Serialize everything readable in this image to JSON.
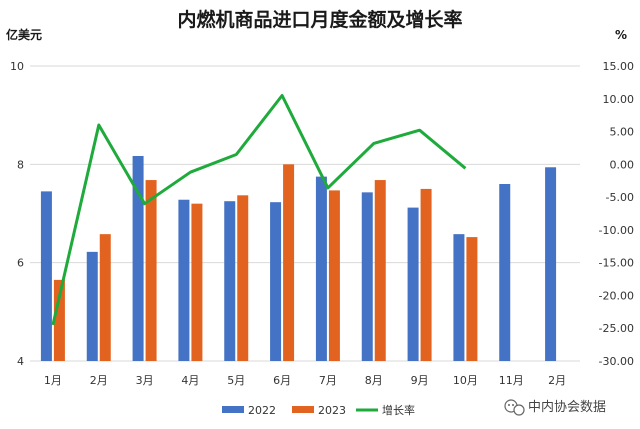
{
  "chart_data": {
    "type": "bar+line",
    "title": "内燃机商品进口月度金额及增长率",
    "left_axis_unit": "亿美元",
    "right_axis_unit": "%",
    "categories": [
      "1月",
      "2月",
      "3月",
      "4月",
      "5月",
      "6月",
      "7月",
      "8月",
      "9月",
      "10月",
      "11月",
      "2月"
    ],
    "y_left": {
      "min": 4,
      "max": 10,
      "ticks": [
        "4",
        "6",
        "8",
        "10"
      ]
    },
    "y_right": {
      "min": -30,
      "max": 15,
      "ticks": [
        "-30.00",
        "-25.00",
        "-20.00",
        "-15.00",
        "-10.00",
        "-5.00",
        "0.00",
        "5.00",
        "10.00",
        "15.00"
      ]
    },
    "series": [
      {
        "name": "2022",
        "kind": "bar",
        "axis": "left",
        "color": "#4472C4",
        "values": [
          7.45,
          6.22,
          8.17,
          7.28,
          7.25,
          7.23,
          7.75,
          7.43,
          7.12,
          6.58,
          7.6,
          7.94
        ]
      },
      {
        "name": "2023",
        "kind": "bar",
        "axis": "left",
        "color": "#E2631F",
        "values": [
          5.65,
          6.58,
          7.68,
          7.2,
          7.37,
          8.0,
          7.47,
          7.68,
          7.5,
          6.52,
          null,
          null
        ]
      },
      {
        "name": "增长率",
        "kind": "line",
        "axis": "right",
        "color": "#1FAA3C",
        "values": [
          -24.5,
          6.0,
          -6.0,
          -1.2,
          1.5,
          10.5,
          -3.6,
          3.2,
          5.2,
          -0.6,
          null,
          null
        ]
      }
    ],
    "grid": true,
    "legend_position": "bottom"
  },
  "watermark": {
    "text": "中内协会数据",
    "icon": "wechat-icon"
  }
}
